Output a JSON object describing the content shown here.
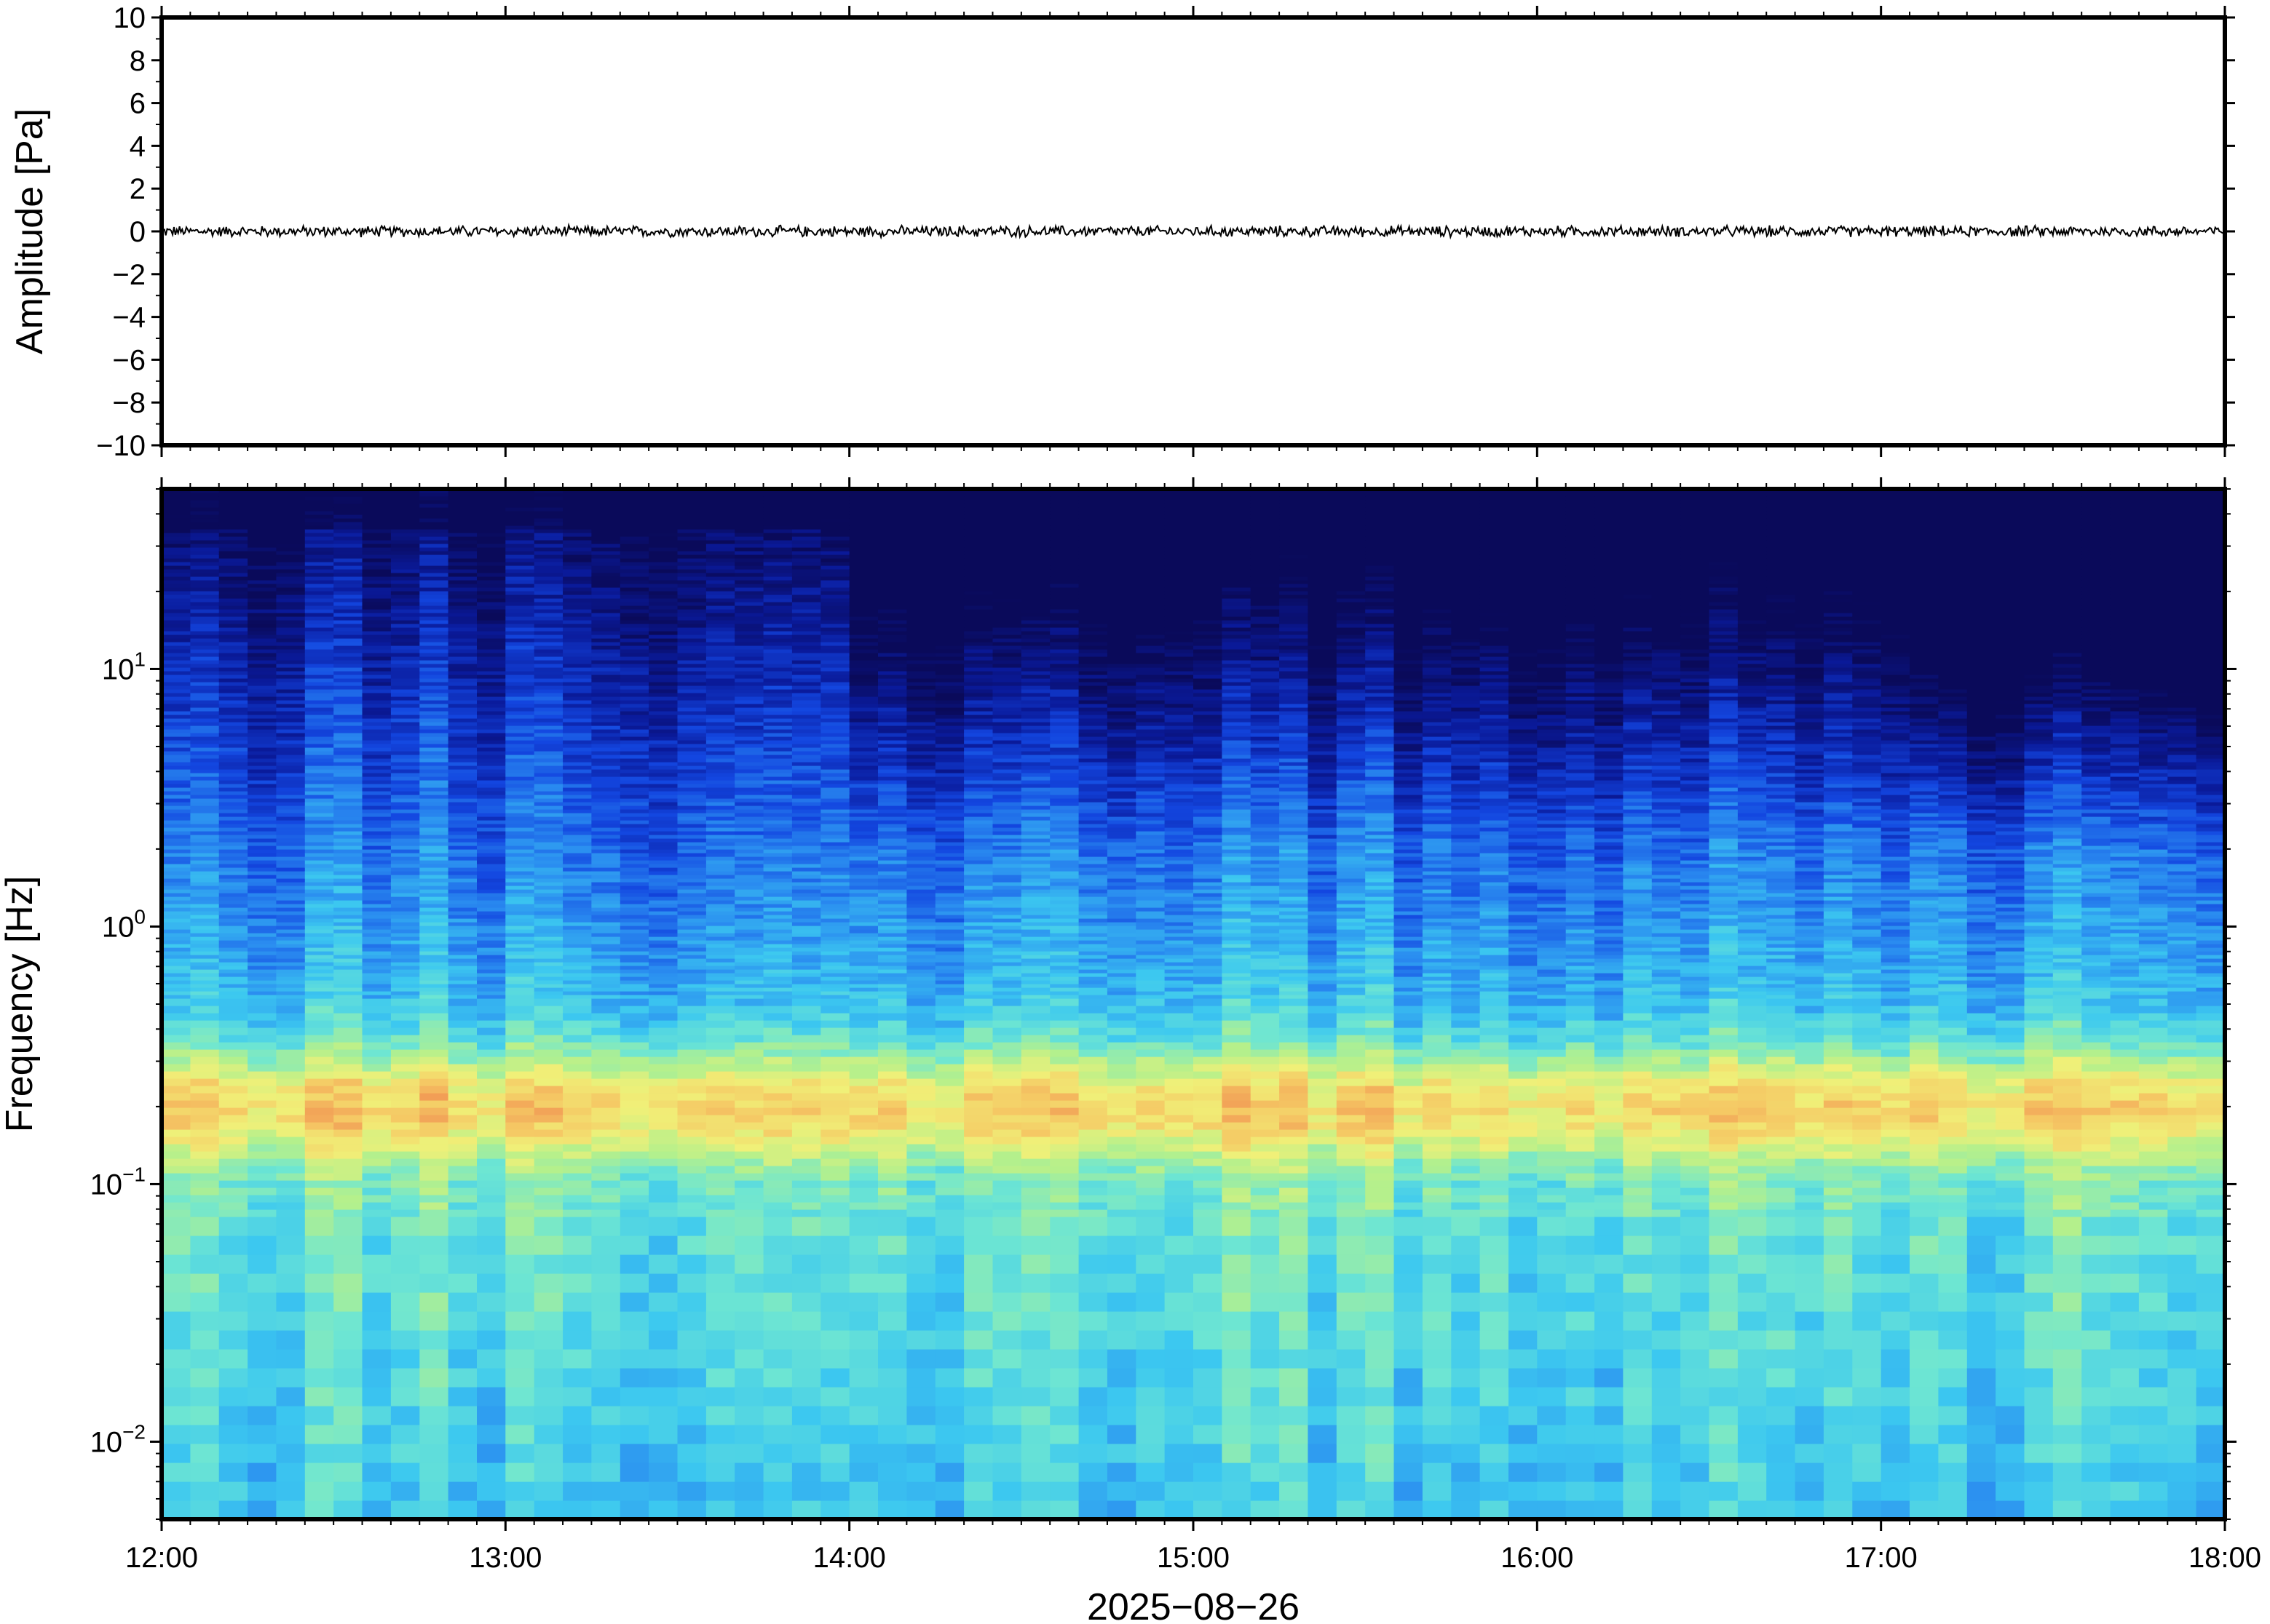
{
  "chart_data": [
    {
      "type": "line",
      "ylabel": "Amplitude [Pa]",
      "ylim": [
        -10,
        10
      ],
      "yticks": [
        "10",
        "8",
        "6",
        "4",
        "2",
        "0",
        "−2",
        "−4",
        "−6",
        "−8",
        "−10"
      ],
      "ytick_values": [
        10,
        8,
        6,
        4,
        2,
        0,
        -2,
        -4,
        -6,
        -8,
        -10
      ],
      "xlim": [
        "12:00",
        "18:00"
      ],
      "series_description_color": "#000000",
      "series": [
        {
          "x_start": "12:00",
          "x_end": "18:00",
          "approx_mean": 0.0,
          "approx_peak": 0.3
        }
      ],
      "grid": false
    },
    {
      "type": "heatmap",
      "ylabel": "Frequency [Hz]",
      "yscale": "log",
      "ylim": [
        0.005,
        50
      ],
      "ytick_labels": [
        {
          "base": "10",
          "exp": "1",
          "value": 10
        },
        {
          "base": "10",
          "exp": "0",
          "value": 1
        },
        {
          "base": "10",
          "exp": "−1",
          "value": 0.1
        },
        {
          "base": "10",
          "exp": "−2",
          "value": 0.01
        }
      ],
      "xticks": [
        "12:00",
        "13:00",
        "14:00",
        "15:00",
        "16:00",
        "17:00",
        "18:00"
      ],
      "xtick_hours": [
        12,
        13,
        14,
        15,
        16,
        17,
        18
      ],
      "xlabel": "2025−08−26",
      "colormap": [
        "#0a0a5a",
        "#0a1a9a",
        "#1346e0",
        "#2a8cf0",
        "#3cc8f0",
        "#6ee6d2",
        "#b4f08c",
        "#f0f078",
        "#f5c864",
        "#f08c50"
      ],
      "features": {
        "band_peak_hz": 0.2,
        "quiet_high_freq_after": "14:00"
      },
      "grid": false
    }
  ]
}
